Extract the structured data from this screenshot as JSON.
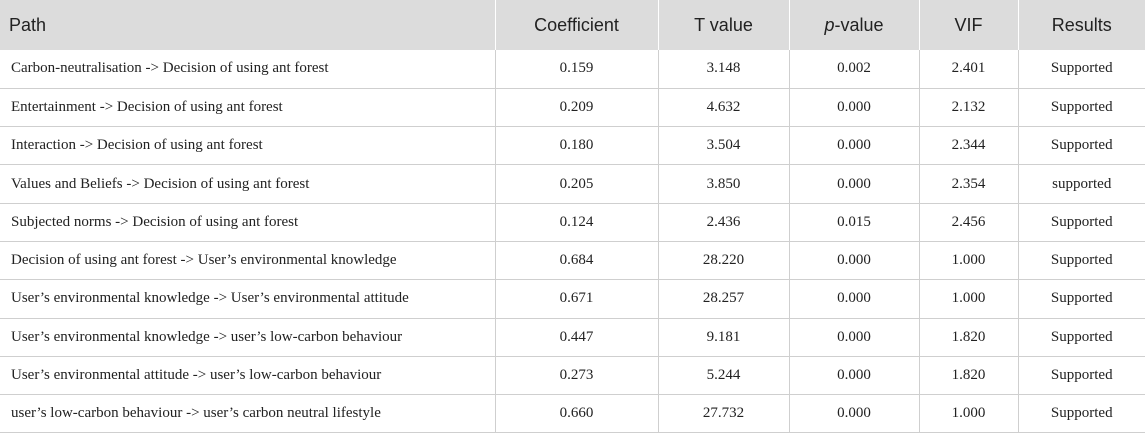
{
  "table": {
    "headers": {
      "path": "Path",
      "coefficient": "Coefficient",
      "t_value": "T value",
      "p_value_italic": "p",
      "p_value_rest": "-value",
      "vif": "VIF",
      "results": "Results"
    },
    "rows": [
      {
        "path": "Carbon-neutralisation -> Decision of using ant forest",
        "coefficient": "0.159",
        "t_value": "3.148",
        "p_value": "0.002",
        "vif": "2.401",
        "results": "Supported"
      },
      {
        "path": "Entertainment -> Decision of using ant forest",
        "coefficient": "0.209",
        "t_value": "4.632",
        "p_value": "0.000",
        "vif": "2.132",
        "results": "Supported"
      },
      {
        "path": "Interaction -> Decision of using ant forest",
        "coefficient": "0.180",
        "t_value": "3.504",
        "p_value": "0.000",
        "vif": "2.344",
        "results": "Supported"
      },
      {
        "path": "Values and Beliefs -> Decision of using ant forest",
        "coefficient": "0.205",
        "t_value": "3.850",
        "p_value": "0.000",
        "vif": "2.354",
        "results": "supported"
      },
      {
        "path": "Subjected norms -> Decision of using ant forest",
        "coefficient": "0.124",
        "t_value": "2.436",
        "p_value": "0.015",
        "vif": "2.456",
        "results": "Supported"
      },
      {
        "path": "Decision of using ant forest -> User’s environmental knowledge",
        "coefficient": "0.684",
        "t_value": "28.220",
        "p_value": "0.000",
        "vif": "1.000",
        "results": "Supported"
      },
      {
        "path": "User’s environmental knowledge -> User’s environmental attitude",
        "coefficient": "0.671",
        "t_value": "28.257",
        "p_value": "0.000",
        "vif": "1.000",
        "results": "Supported"
      },
      {
        "path": "User’s environmental knowledge -> user’s low-carbon behaviour",
        "coefficient": "0.447",
        "t_value": "9.181",
        "p_value": "0.000",
        "vif": "1.820",
        "results": "Supported"
      },
      {
        "path": "User’s environmental attitude -> user’s low-carbon behaviour",
        "coefficient": "0.273",
        "t_value": "5.244",
        "p_value": "0.000",
        "vif": "1.820",
        "results": "Supported"
      },
      {
        "path": "user’s low-carbon behaviour -> user’s carbon neutral lifestyle",
        "coefficient": "0.660",
        "t_value": "27.732",
        "p_value": "0.000",
        "vif": "1.000",
        "results": "Supported"
      }
    ]
  }
}
